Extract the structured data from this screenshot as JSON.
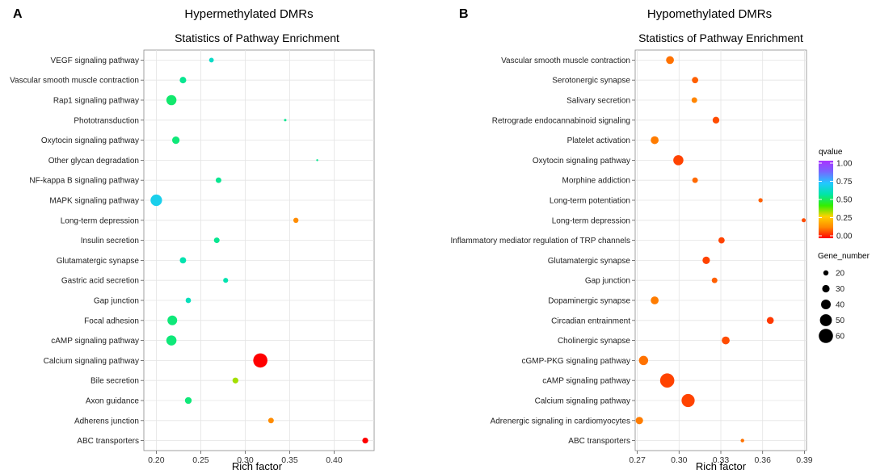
{
  "chart_data": [
    {
      "type": "scatter",
      "panel_label": "A",
      "header": "Hypermethylated DMRs",
      "title": "Statistics of Pathway Enrichment",
      "xlabel": "Rich factor",
      "ylabel": "",
      "xlim": [
        0.186,
        0.445
      ],
      "xticks": [
        0.2,
        0.25,
        0.3,
        0.35,
        0.4
      ],
      "xtick_labels": [
        "0.20",
        "0.25",
        "0.30",
        "0.35",
        "0.40"
      ],
      "categories": [
        "VEGF signaling pathway",
        "Vascular smooth muscle contraction",
        "Rap1 signaling pathway",
        "Phototransduction",
        "Oxytocin signaling pathway",
        "Other glycan degradation",
        "NF-kappa B signaling pathway",
        "MAPK signaling pathway",
        "Long-term depression",
        "Insulin secretion",
        "Glutamatergic synapse",
        "Gastric acid secretion",
        "Gap junction",
        "Focal adhesion",
        "cAMP signaling pathway",
        "Calcium signaling pathway",
        "Bile secretion",
        "Axon guidance",
        "Adherens junction",
        "ABC transporters"
      ],
      "points": [
        {
          "pathway": "VEGF signaling pathway",
          "rich_factor": 0.262,
          "gene_number": 18,
          "qvalue": 0.62
        },
        {
          "pathway": "Vascular smooth muscle contraction",
          "rich_factor": 0.23,
          "gene_number": 26,
          "qvalue": 0.55
        },
        {
          "pathway": "Rap1 signaling pathway",
          "rich_factor": 0.217,
          "gene_number": 42,
          "qvalue": 0.52
        },
        {
          "pathway": "Phototransduction",
          "rich_factor": 0.345,
          "gene_number": 8,
          "qvalue": 0.55
        },
        {
          "pathway": "Oxytocin signaling pathway",
          "rich_factor": 0.222,
          "gene_number": 30,
          "qvalue": 0.53
        },
        {
          "pathway": "Other glycan degradation",
          "rich_factor": 0.381,
          "gene_number": 6,
          "qvalue": 0.55
        },
        {
          "pathway": "NF-kappa B signaling pathway",
          "rich_factor": 0.27,
          "gene_number": 22,
          "qvalue": 0.55
        },
        {
          "pathway": "MAPK signaling pathway",
          "rich_factor": 0.2,
          "gene_number": 48,
          "qvalue": 0.68
        },
        {
          "pathway": "Long-term depression",
          "rich_factor": 0.357,
          "gene_number": 20,
          "qvalue": 0.15
        },
        {
          "pathway": "Insulin secretion",
          "rich_factor": 0.268,
          "gene_number": 22,
          "qvalue": 0.55
        },
        {
          "pathway": "Glutamatergic synapse",
          "rich_factor": 0.23,
          "gene_number": 25,
          "qvalue": 0.58
        },
        {
          "pathway": "Gastric acid secretion",
          "rich_factor": 0.278,
          "gene_number": 19,
          "qvalue": 0.58
        },
        {
          "pathway": "Gap junction",
          "rich_factor": 0.236,
          "gene_number": 21,
          "qvalue": 0.6
        },
        {
          "pathway": "Focal adhesion",
          "rich_factor": 0.218,
          "gene_number": 40,
          "qvalue": 0.53
        },
        {
          "pathway": "cAMP signaling pathway",
          "rich_factor": 0.217,
          "gene_number": 42,
          "qvalue": 0.53
        },
        {
          "pathway": "Calcium signaling pathway",
          "rich_factor": 0.317,
          "gene_number": 60,
          "qvalue": 0.0
        },
        {
          "pathway": "Bile secretion",
          "rich_factor": 0.289,
          "gene_number": 23,
          "qvalue": 0.35
        },
        {
          "pathway": "Axon guidance",
          "rich_factor": 0.236,
          "gene_number": 27,
          "qvalue": 0.53
        },
        {
          "pathway": "Adherens junction",
          "rich_factor": 0.329,
          "gene_number": 22,
          "qvalue": 0.15
        },
        {
          "pathway": "ABC transporters",
          "rich_factor": 0.435,
          "gene_number": 23,
          "qvalue": 0.0
        }
      ]
    },
    {
      "type": "scatter",
      "panel_label": "B",
      "header": "Hypomethylated DMRs",
      "title": "Statistics of Pathway Enrichment",
      "xlabel": "Rich factor",
      "ylabel": "",
      "xlim": [
        0.2685,
        0.3915
      ],
      "xticks": [
        0.27,
        0.3,
        0.33,
        0.36,
        0.39
      ],
      "xtick_labels": [
        "0.27",
        "0.30",
        "0.33",
        "0.36",
        "0.39"
      ],
      "categories": [
        "Vascular smooth muscle contraction",
        "Serotonergic synapse",
        "Salivary secretion",
        "Retrograde endocannabinoid signaling",
        "Platelet activation",
        "Oxytocin signaling pathway",
        "Morphine addiction",
        "Long-term potentiation",
        "Long-term depression",
        "Inflammatory mediator regulation of TRP channels",
        "Glutamatergic synapse",
        "Gap junction",
        "Dopaminergic synapse",
        "Circadian entrainment",
        "Cholinergic synapse",
        "cGMP-PKG signaling pathway",
        "cAMP signaling pathway",
        "Calcium signaling pathway",
        "Adrenergic signaling in cardiomyocytes",
        "ABC transporters"
      ],
      "points": [
        {
          "pathway": "Vascular smooth muscle contraction",
          "rich_factor": 0.2935,
          "gene_number": 32,
          "qvalue": 0.12
        },
        {
          "pathway": "Serotonergic synapse",
          "rich_factor": 0.3115,
          "gene_number": 25,
          "qvalue": 0.1
        },
        {
          "pathway": "Salivary secretion",
          "rich_factor": 0.311,
          "gene_number": 22,
          "qvalue": 0.14
        },
        {
          "pathway": "Retrograde endocannabinoid signaling",
          "rich_factor": 0.3265,
          "gene_number": 27,
          "qvalue": 0.08
        },
        {
          "pathway": "Platelet activation",
          "rich_factor": 0.2825,
          "gene_number": 32,
          "qvalue": 0.13
        },
        {
          "pathway": "Oxytocin signaling pathway",
          "rich_factor": 0.2995,
          "gene_number": 42,
          "qvalue": 0.07
        },
        {
          "pathway": "Morphine addiction",
          "rich_factor": 0.3115,
          "gene_number": 22,
          "qvalue": 0.11
        },
        {
          "pathway": "Long-term potentiation",
          "rich_factor": 0.3585,
          "gene_number": 16,
          "qvalue": 0.1
        },
        {
          "pathway": "Long-term depression",
          "rich_factor": 0.3895,
          "gene_number": 15,
          "qvalue": 0.08
        },
        {
          "pathway": "Inflammatory mediator regulation of TRP channels",
          "rich_factor": 0.3305,
          "gene_number": 25,
          "qvalue": 0.07
        },
        {
          "pathway": "Glutamatergic synapse",
          "rich_factor": 0.3195,
          "gene_number": 30,
          "qvalue": 0.07
        },
        {
          "pathway": "Gap junction",
          "rich_factor": 0.3255,
          "gene_number": 22,
          "qvalue": 0.1
        },
        {
          "pathway": "Dopaminergic synapse",
          "rich_factor": 0.2825,
          "gene_number": 32,
          "qvalue": 0.13
        },
        {
          "pathway": "Circadian entrainment",
          "rich_factor": 0.3655,
          "gene_number": 28,
          "qvalue": 0.06
        },
        {
          "pathway": "Cholinergic synapse",
          "rich_factor": 0.3335,
          "gene_number": 32,
          "qvalue": 0.08
        },
        {
          "pathway": "cGMP-PKG signaling pathway",
          "rich_factor": 0.2745,
          "gene_number": 38,
          "qvalue": 0.12
        },
        {
          "pathway": "cAMP signaling pathway",
          "rich_factor": 0.2915,
          "gene_number": 60,
          "qvalue": 0.07
        },
        {
          "pathway": "Calcium signaling pathway",
          "rich_factor": 0.3065,
          "gene_number": 55,
          "qvalue": 0.07
        },
        {
          "pathway": "Adrenergic signaling in cardiomyocytes",
          "rich_factor": 0.2715,
          "gene_number": 30,
          "qvalue": 0.13
        },
        {
          "pathway": "ABC transporters",
          "rich_factor": 0.3455,
          "gene_number": 13,
          "qvalue": 0.12
        }
      ]
    }
  ],
  "legend": {
    "qvalue_title": "qvalue",
    "qvalue_ticks": [
      "1.00",
      "0.75",
      "0.50",
      "0.25",
      "0.00"
    ],
    "qvalue_colors": [
      "#FF0000",
      "#FF8800",
      "#FFD200",
      "#33EE00",
      "#00E5AA",
      "#22C8FF",
      "#7766FF",
      "#AA33FF"
    ],
    "gene_number_title": "Gene_number",
    "gene_number_entries": [
      {
        "label": "20",
        "value": 20
      },
      {
        "label": "30",
        "value": 30
      },
      {
        "label": "40",
        "value": 40
      },
      {
        "label": "50",
        "value": 50
      },
      {
        "label": "60",
        "value": 60
      }
    ]
  }
}
